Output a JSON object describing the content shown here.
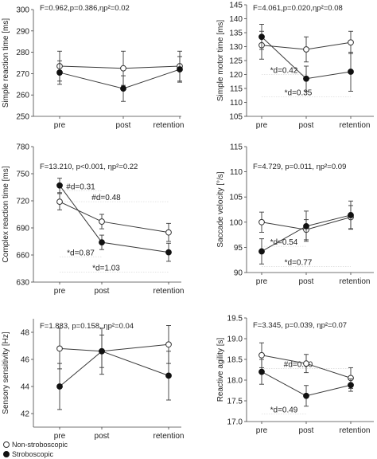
{
  "chart_data": [
    {
      "type": "line",
      "ylabel": "Simple reaction time [ms]",
      "stats": "F=0.962,p=0.386,ηp²=0.02",
      "categories": [
        "pre",
        "post",
        "retention"
      ],
      "ylim": [
        250,
        300
      ],
      "yticks": [
        250,
        260,
        270,
        280,
        290,
        300
      ],
      "series": [
        {
          "name": "Non-stroboscopic",
          "marker": "open",
          "values": [
            273.5,
            272.5,
            273.5
          ],
          "errors": [
            7,
            8,
            7
          ]
        },
        {
          "name": "Stroboscopic",
          "marker": "filled",
          "values": [
            270.5,
            263.0,
            272.0
          ],
          "errors": [
            5.5,
            6,
            6
          ]
        }
      ],
      "annotations": []
    },
    {
      "type": "line",
      "ylabel": "Simple motor time [ms]",
      "stats": "F=4.061,p=0.020,ηp²=0.08",
      "categories": [
        "pre",
        "post",
        "retention"
      ],
      "ylim": [
        105,
        145
      ],
      "yticks": [
        105,
        110,
        115,
        120,
        125,
        130,
        135,
        140,
        145
      ],
      "series": [
        {
          "name": "Non-stroboscopic",
          "marker": "open",
          "values": [
            130.5,
            129.0,
            131.5
          ],
          "errors": [
            5,
            4.5,
            4
          ]
        },
        {
          "name": "Stroboscopic",
          "marker": "filled",
          "values": [
            133.5,
            118.5,
            121.0
          ],
          "errors": [
            4.5,
            4.5,
            7
          ]
        }
      ],
      "annotations": [
        {
          "text": "*d=0.42",
          "x1": "pre",
          "x2": "post",
          "y": 120
        },
        {
          "text": "*d=0.35",
          "x1": "pre",
          "x2": "retention",
          "y": 112
        }
      ]
    },
    {
      "type": "line",
      "ylabel": "Complex reaction time [ms]",
      "stats": "F=13.210, p<0.001, ηp²=0.22",
      "categories": [
        "pre",
        "post",
        "retention"
      ],
      "ylim": [
        630,
        780
      ],
      "yticks": [
        630,
        660,
        690,
        720,
        750,
        780
      ],
      "series": [
        {
          "name": "Non-stroboscopic",
          "marker": "open",
          "values": [
            719,
            697,
            685
          ],
          "errors": [
            9,
            8,
            10
          ]
        },
        {
          "name": "Stroboscopic",
          "marker": "filled",
          "values": [
            737,
            674,
            663
          ],
          "errors": [
            8,
            8,
            10
          ]
        }
      ],
      "annotations": [
        {
          "text": "#d=0.31",
          "x1": "pre",
          "x2": "post",
          "y": 731
        },
        {
          "text": "#d=0.48",
          "x1": "pre",
          "x2": "retention",
          "y": 719
        },
        {
          "text": "*d=0.87",
          "x1": "pre",
          "x2": "post",
          "y": 658
        },
        {
          "text": "*d=1.03",
          "x1": "pre",
          "x2": "retention",
          "y": 641
        }
      ]
    },
    {
      "type": "line",
      "ylabel": "Saccade velocity [°/s]",
      "stats": "F=4.729, p=0.011, ηp²=0.09",
      "categories": [
        "pre",
        "post",
        "retention"
      ],
      "ylim": [
        90,
        115
      ],
      "yticks": [
        90,
        95,
        100,
        105,
        110,
        115
      ],
      "series": [
        {
          "name": "Non-stroboscopic",
          "marker": "open",
          "values": [
            100.0,
            98.5,
            101.0
          ],
          "errors": [
            2,
            2,
            2.3
          ]
        },
        {
          "name": "Stroboscopic",
          "marker": "filled",
          "values": [
            94.2,
            99.2,
            101.4
          ],
          "errors": [
            2.5,
            3,
            2.8
          ]
        }
      ],
      "annotations": [
        {
          "text": "*d=0.54",
          "x1": "pre",
          "x2": "post",
          "y": 95.2
        },
        {
          "text": "*d=0.77",
          "x1": "pre",
          "x2": "retention",
          "y": 91.2
        }
      ]
    },
    {
      "type": "line",
      "ylabel": "Sensory sensitivity [Hz]",
      "stats": "F=1.883, p=0.158, ηp²=0.04",
      "categories": [
        "pre",
        "post",
        "retention"
      ],
      "ylim": [
        41,
        49
      ],
      "yticks": [
        42,
        44,
        46,
        48
      ],
      "series": [
        {
          "name": "Non-stroboscopic",
          "marker": "open",
          "values": [
            46.8,
            46.6,
            47.1
          ],
          "errors": [
            1.5,
            1.2,
            1.4
          ]
        },
        {
          "name": "Stroboscopic",
          "marker": "filled",
          "values": [
            44.0,
            46.6,
            44.8
          ],
          "errors": [
            1.7,
            1.7,
            1.8
          ]
        }
      ],
      "annotations": []
    },
    {
      "type": "line",
      "ylabel": "Reactive agility [s]",
      "stats": "F=3.345, p=0.039, ηp²=0.07",
      "categories": [
        "pre",
        "post",
        "retention"
      ],
      "ylim": [
        17.0,
        19.5
      ],
      "yticks": [
        17.0,
        17.5,
        18.0,
        18.5,
        19.0,
        19.5
      ],
      "series": [
        {
          "name": "Non-stroboscopic",
          "marker": "open",
          "values": [
            18.6,
            18.4,
            18.05
          ],
          "errors": [
            0.3,
            0.22,
            0.25
          ]
        },
        {
          "name": "Stroboscopic",
          "marker": "filled",
          "values": [
            18.2,
            17.62,
            17.88
          ],
          "errors": [
            0.3,
            0.25,
            0.15
          ]
        }
      ],
      "annotations": [
        {
          "text": "#d=0.50",
          "x1": "pre",
          "x2": "retention",
          "y": 18.28
        },
        {
          "text": "*d=0.49",
          "x1": "pre",
          "x2": "post",
          "y": 17.18
        }
      ]
    }
  ],
  "legend": [
    {
      "label": "Non-stroboscopic",
      "marker": "open"
    },
    {
      "label": "Stroboscopic",
      "marker": "filled"
    }
  ],
  "colors": {
    "line": "#3a3a3a",
    "open_fill": "#ffffff",
    "filled_fill": "#111111",
    "grid": "#dcdcdc"
  }
}
